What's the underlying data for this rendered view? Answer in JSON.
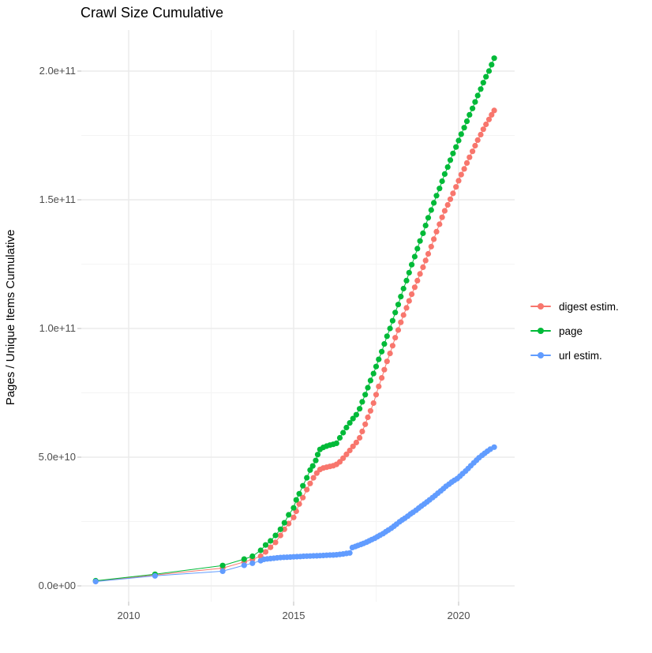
{
  "title": "Crawl Size Cumulative",
  "axes": {
    "y_title": "Pages / Unique Items Cumulative",
    "y_ticks": [
      "0.0e+00",
      "5.0e+10",
      "1.0e+11",
      "1.5e+11",
      "2.0e+11"
    ],
    "x_ticks": [
      "2010",
      "2015",
      "2020"
    ]
  },
  "legend": {
    "position": "right",
    "items": [
      {
        "label": "digest estim.",
        "color": "#F8766D"
      },
      {
        "label": "page",
        "color": "#00BA38"
      },
      {
        "label": "url estim.",
        "color": "#619CFF"
      }
    ]
  },
  "chart_data": {
    "type": "scatter",
    "title": "Crawl Size Cumulative",
    "xlabel": "",
    "ylabel": "Pages / Unique Items Cumulative",
    "x_unit": "year (decimal, crawl date)",
    "values_in_billions": true,
    "value_scale": 1000000000.0,
    "xlim": [
      2008.6,
      2021.7
    ],
    "ylim_billions": [
      0,
      215
    ],
    "x_tick_values": [
      2010,
      2015,
      2020
    ],
    "x_minor_ticks": [
      2012.5,
      2017.5
    ],
    "y_tick_values_billions": [
      0,
      50,
      100,
      150,
      200
    ],
    "y_minor_ticks_billions": [
      25,
      75,
      125,
      175
    ],
    "grid": true,
    "legend_position": "right",
    "marker": "point-with-line",
    "series": [
      {
        "name": "digest estim.",
        "color": "#F8766D",
        "points": [
          [
            2009.0,
            1.8
          ],
          [
            2010.8,
            4.2
          ],
          [
            2012.85,
            6.9
          ],
          [
            2013.5,
            9.3
          ],
          [
            2013.75,
            10.3
          ],
          [
            2014.0,
            11.5
          ],
          [
            2014.15,
            13.2
          ],
          [
            2014.3,
            15.0
          ],
          [
            2014.45,
            16.9
          ],
          [
            2014.6,
            19.6
          ],
          [
            2014.72,
            22.0
          ],
          [
            2014.85,
            24.2
          ],
          [
            2015.0,
            26.6
          ],
          [
            2015.08,
            29.0
          ],
          [
            2015.17,
            31.8
          ],
          [
            2015.28,
            34.3
          ],
          [
            2015.4,
            37.4
          ],
          [
            2015.5,
            39.8
          ],
          [
            2015.6,
            42.0
          ],
          [
            2015.7,
            43.8
          ],
          [
            2015.8,
            45.2
          ],
          [
            2015.9,
            45.8
          ],
          [
            2016.0,
            46.1
          ],
          [
            2016.1,
            46.4
          ],
          [
            2016.2,
            46.7
          ],
          [
            2016.3,
            47.2
          ],
          [
            2016.4,
            48.2
          ],
          [
            2016.5,
            49.6
          ],
          [
            2016.6,
            51.1
          ],
          [
            2016.7,
            52.6
          ],
          [
            2016.8,
            54.2
          ],
          [
            2016.9,
            55.7
          ],
          [
            2017.0,
            57.5
          ],
          [
            2017.08,
            60.0
          ],
          [
            2017.17,
            62.8
          ],
          [
            2017.25,
            65.5
          ],
          [
            2017.33,
            68.0
          ],
          [
            2017.42,
            71.0
          ],
          [
            2017.5,
            74.3
          ],
          [
            2017.58,
            77.5
          ],
          [
            2017.67,
            80.8
          ],
          [
            2017.75,
            84.0
          ],
          [
            2017.83,
            87.2
          ],
          [
            2017.92,
            90.3
          ],
          [
            2018.0,
            93.3
          ],
          [
            2018.08,
            96.4
          ],
          [
            2018.17,
            99.4
          ],
          [
            2018.25,
            102.4
          ],
          [
            2018.33,
            105.2
          ],
          [
            2018.42,
            108.0
          ],
          [
            2018.5,
            110.7
          ],
          [
            2018.58,
            113.3
          ],
          [
            2018.67,
            116.0
          ],
          [
            2018.75,
            118.6
          ],
          [
            2018.83,
            121.2
          ],
          [
            2018.92,
            123.8
          ],
          [
            2019.0,
            126.4
          ],
          [
            2019.08,
            129.0
          ],
          [
            2019.17,
            131.8
          ],
          [
            2019.25,
            134.7
          ],
          [
            2019.33,
            137.6
          ],
          [
            2019.42,
            140.5
          ],
          [
            2019.5,
            143.2
          ],
          [
            2019.58,
            145.7
          ],
          [
            2019.67,
            148.0
          ],
          [
            2019.75,
            150.2
          ],
          [
            2019.83,
            152.5
          ],
          [
            2019.92,
            155.0
          ],
          [
            2020.0,
            157.4
          ],
          [
            2020.08,
            159.8
          ],
          [
            2020.17,
            162.0
          ],
          [
            2020.25,
            164.3
          ],
          [
            2020.33,
            166.5
          ],
          [
            2020.42,
            168.8
          ],
          [
            2020.5,
            171.0
          ],
          [
            2020.58,
            173.2
          ],
          [
            2020.67,
            175.3
          ],
          [
            2020.75,
            177.4
          ],
          [
            2020.83,
            179.3
          ],
          [
            2020.92,
            181.2
          ],
          [
            2021.0,
            183.0
          ],
          [
            2021.08,
            184.7
          ]
        ]
      },
      {
        "name": "page",
        "color": "#00BA38",
        "points": [
          [
            2009.0,
            2.0
          ],
          [
            2010.8,
            4.5
          ],
          [
            2012.85,
            7.9
          ],
          [
            2013.5,
            10.4
          ],
          [
            2013.75,
            11.5
          ],
          [
            2014.0,
            13.8
          ],
          [
            2014.15,
            15.9
          ],
          [
            2014.3,
            17.5
          ],
          [
            2014.45,
            19.6
          ],
          [
            2014.6,
            22.0
          ],
          [
            2014.72,
            24.5
          ],
          [
            2014.85,
            27.6
          ],
          [
            2015.0,
            30.3
          ],
          [
            2015.08,
            33.4
          ],
          [
            2015.17,
            35.8
          ],
          [
            2015.28,
            38.9
          ],
          [
            2015.4,
            42.0
          ],
          [
            2015.5,
            45.0
          ],
          [
            2015.58,
            46.6
          ],
          [
            2015.67,
            48.7
          ],
          [
            2015.73,
            51.0
          ],
          [
            2015.8,
            53.0
          ],
          [
            2015.9,
            53.8
          ],
          [
            2016.0,
            54.3
          ],
          [
            2016.1,
            54.7
          ],
          [
            2016.2,
            55.0
          ],
          [
            2016.3,
            55.4
          ],
          [
            2016.4,
            57.5
          ],
          [
            2016.5,
            59.5
          ],
          [
            2016.6,
            61.5
          ],
          [
            2016.7,
            63.3
          ],
          [
            2016.8,
            65.0
          ],
          [
            2016.9,
            66.5
          ],
          [
            2017.0,
            68.8
          ],
          [
            2017.08,
            71.5
          ],
          [
            2017.17,
            74.3
          ],
          [
            2017.25,
            77.0
          ],
          [
            2017.33,
            79.8
          ],
          [
            2017.42,
            82.5
          ],
          [
            2017.5,
            85.2
          ],
          [
            2017.58,
            88.0
          ],
          [
            2017.67,
            91.0
          ],
          [
            2017.75,
            94.0
          ],
          [
            2017.83,
            97.0
          ],
          [
            2017.92,
            100.0
          ],
          [
            2018.0,
            103.0
          ],
          [
            2018.08,
            106.2
          ],
          [
            2018.17,
            109.3
          ],
          [
            2018.25,
            112.4
          ],
          [
            2018.33,
            115.5
          ],
          [
            2018.42,
            118.6
          ],
          [
            2018.5,
            121.7
          ],
          [
            2018.58,
            124.8
          ],
          [
            2018.67,
            127.9
          ],
          [
            2018.75,
            131.0
          ],
          [
            2018.83,
            134.0
          ],
          [
            2018.92,
            137.0
          ],
          [
            2019.0,
            140.0
          ],
          [
            2019.08,
            143.0
          ],
          [
            2019.17,
            146.0
          ],
          [
            2019.25,
            148.8
          ],
          [
            2019.33,
            151.6
          ],
          [
            2019.42,
            154.4
          ],
          [
            2019.5,
            157.2
          ],
          [
            2019.58,
            160.0
          ],
          [
            2019.67,
            162.7
          ],
          [
            2019.75,
            165.4
          ],
          [
            2019.83,
            168.0
          ],
          [
            2019.92,
            170.5
          ],
          [
            2020.0,
            173.0
          ],
          [
            2020.08,
            175.5
          ],
          [
            2020.17,
            178.0
          ],
          [
            2020.25,
            180.5
          ],
          [
            2020.33,
            183.0
          ],
          [
            2020.42,
            185.5
          ],
          [
            2020.5,
            188.0
          ],
          [
            2020.58,
            190.5
          ],
          [
            2020.67,
            193.0
          ],
          [
            2020.75,
            195.5
          ],
          [
            2020.83,
            197.8
          ],
          [
            2020.92,
            200.0
          ],
          [
            2021.0,
            202.5
          ],
          [
            2021.08,
            205.0
          ]
        ]
      },
      {
        "name": "url estim.",
        "color": "#619CFF",
        "points": [
          [
            2009.0,
            1.7
          ],
          [
            2010.8,
            3.9
          ],
          [
            2012.85,
            5.7
          ],
          [
            2013.5,
            8.0
          ],
          [
            2013.75,
            8.8
          ],
          [
            2014.0,
            9.8
          ],
          [
            2014.1,
            10.3
          ],
          [
            2014.2,
            10.5
          ],
          [
            2014.3,
            10.6
          ],
          [
            2014.4,
            10.75
          ],
          [
            2014.5,
            10.9
          ],
          [
            2014.6,
            11.0
          ],
          [
            2014.7,
            11.1
          ],
          [
            2014.8,
            11.15
          ],
          [
            2014.9,
            11.2
          ],
          [
            2015.0,
            11.3
          ],
          [
            2015.1,
            11.35
          ],
          [
            2015.2,
            11.4
          ],
          [
            2015.3,
            11.5
          ],
          [
            2015.4,
            11.55
          ],
          [
            2015.5,
            11.6
          ],
          [
            2015.6,
            11.65
          ],
          [
            2015.7,
            11.7
          ],
          [
            2015.8,
            11.75
          ],
          [
            2015.9,
            11.8
          ],
          [
            2016.0,
            11.9
          ],
          [
            2016.1,
            11.95
          ],
          [
            2016.2,
            12.0
          ],
          [
            2016.3,
            12.1
          ],
          [
            2016.4,
            12.25
          ],
          [
            2016.5,
            12.4
          ],
          [
            2016.6,
            12.6
          ],
          [
            2016.7,
            12.8
          ],
          [
            2016.78,
            14.9
          ],
          [
            2016.87,
            15.3
          ],
          [
            2016.95,
            15.7
          ],
          [
            2017.04,
            16.1
          ],
          [
            2017.12,
            16.5
          ],
          [
            2017.21,
            17.0
          ],
          [
            2017.29,
            17.5
          ],
          [
            2017.37,
            18.0
          ],
          [
            2017.46,
            18.5
          ],
          [
            2017.54,
            19.1
          ],
          [
            2017.62,
            19.7
          ],
          [
            2017.71,
            20.3
          ],
          [
            2017.79,
            21.0
          ],
          [
            2017.87,
            21.7
          ],
          [
            2017.96,
            22.4
          ],
          [
            2018.04,
            23.2
          ],
          [
            2018.12,
            24.0
          ],
          [
            2018.21,
            24.9
          ],
          [
            2018.29,
            25.6
          ],
          [
            2018.37,
            26.3
          ],
          [
            2018.46,
            27.1
          ],
          [
            2018.54,
            27.9
          ],
          [
            2018.62,
            28.6
          ],
          [
            2018.71,
            29.4
          ],
          [
            2018.79,
            30.2
          ],
          [
            2018.87,
            31.0
          ],
          [
            2018.96,
            31.8
          ],
          [
            2019.04,
            32.6
          ],
          [
            2019.12,
            33.4
          ],
          [
            2019.21,
            34.3
          ],
          [
            2019.29,
            35.1
          ],
          [
            2019.37,
            36.0
          ],
          [
            2019.46,
            36.9
          ],
          [
            2019.54,
            37.8
          ],
          [
            2019.62,
            38.7
          ],
          [
            2019.71,
            39.5
          ],
          [
            2019.79,
            40.3
          ],
          [
            2019.87,
            41.0
          ],
          [
            2019.96,
            41.7
          ],
          [
            2020.04,
            42.6
          ],
          [
            2020.12,
            43.6
          ],
          [
            2020.21,
            44.6
          ],
          [
            2020.29,
            45.6
          ],
          [
            2020.37,
            46.7
          ],
          [
            2020.46,
            47.8
          ],
          [
            2020.54,
            48.8
          ],
          [
            2020.62,
            49.8
          ],
          [
            2020.71,
            50.7
          ],
          [
            2020.79,
            51.5
          ],
          [
            2020.87,
            52.3
          ],
          [
            2020.96,
            53.1
          ],
          [
            2021.08,
            53.9
          ]
        ]
      }
    ],
    "style": {
      "grid_major_color": "#ebebeb",
      "grid_minor_color": "#f4f4f4",
      "tick_color": "#c8c8c8",
      "tick_label_color": "#4d4d4d",
      "background": "#ffffff"
    }
  }
}
